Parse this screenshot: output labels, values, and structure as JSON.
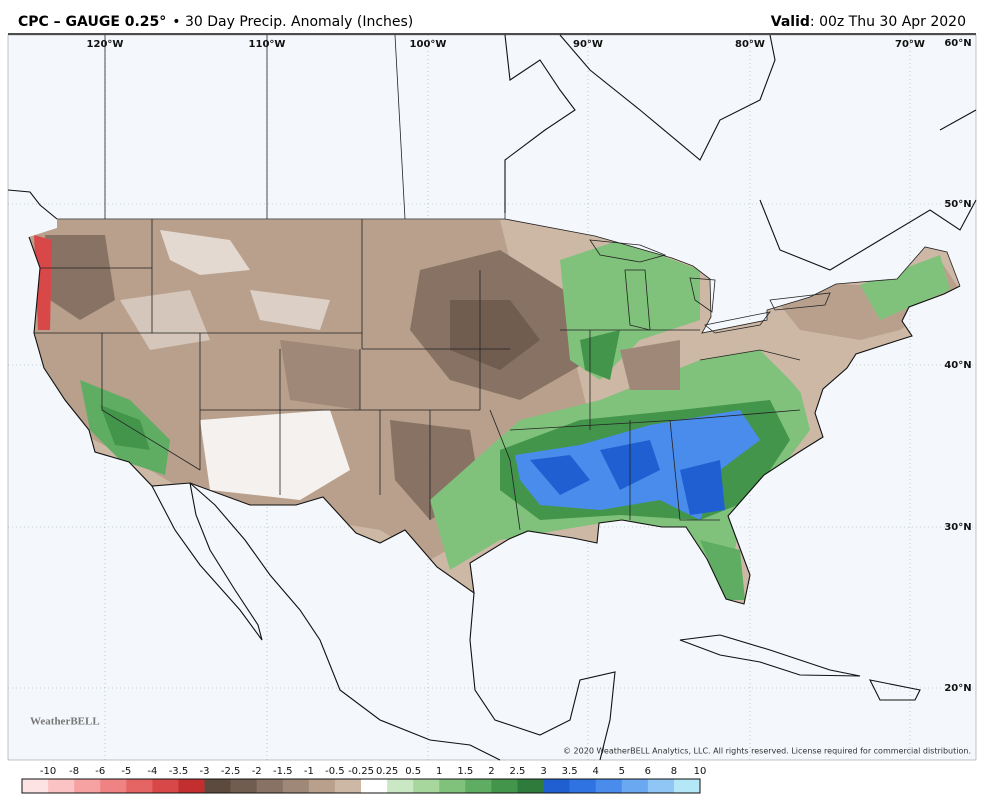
{
  "header": {
    "title": "CPC – GAUGE 0.25°",
    "subtitle": "• 30 Day Precip. Anomaly (Inches)",
    "valid_label": "Valid",
    "valid_time": ": 00z Thu 30 Apr 2020"
  },
  "map": {
    "longitude_labels": [
      "120°W",
      "110°W",
      "100°W",
      "90°W",
      "80°W",
      "70°W"
    ],
    "latitude_labels": [
      "60°N",
      "50°N",
      "40°N",
      "30°N",
      "20°N"
    ],
    "logo": "WeatherBELL",
    "copyright": "© 2020 WeatherBELL Analytics, LLC. All rights reserved. License required for commercial distribution."
  },
  "colorbar": {
    "labels": [
      "-10",
      "-8",
      "-6",
      "-5",
      "-4",
      "-3.5",
      "-3",
      "-2.5",
      "-2",
      "-1.5",
      "-1",
      "-0.5",
      "-0.25",
      "0.25",
      "0.5",
      "1",
      "1.5",
      "2",
      "2.5",
      "3",
      "3.5",
      "4",
      "5",
      "6",
      "8",
      "10"
    ],
    "colors": [
      "#fde3e3",
      "#fbc3c3",
      "#f6a2a2",
      "#ef8383",
      "#e56464",
      "#d94848",
      "#c32e2e",
      "#5c4a3e",
      "#715d4f",
      "#877263",
      "#9f8877",
      "#b8a08c",
      "#cdb8a5",
      "#ffffff",
      "#cbe8c4",
      "#a8d79e",
      "#80c27c",
      "#5ead62",
      "#43954c",
      "#2f7b3b",
      "#1f5fd1",
      "#2f73e3",
      "#4a8cec",
      "#6aa8f1",
      "#8fc6f5",
      "#b5e8f6"
    ]
  }
}
